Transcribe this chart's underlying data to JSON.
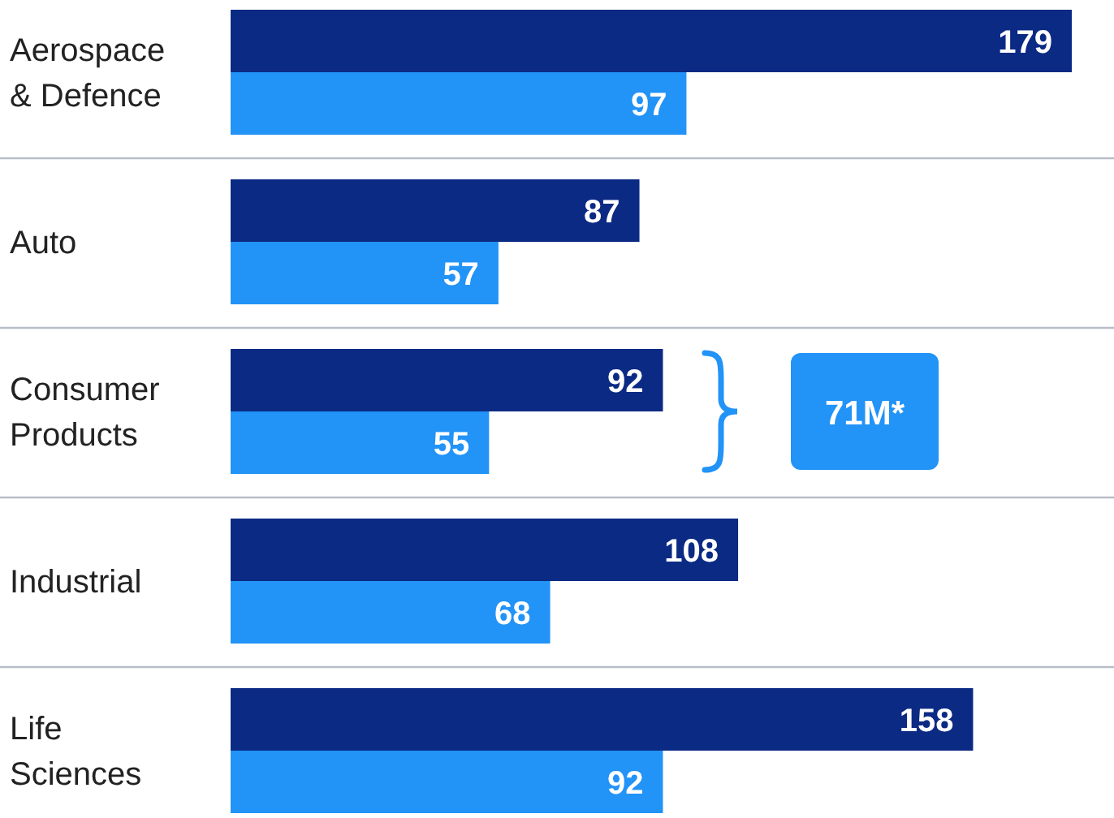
{
  "chart_data": {
    "type": "bar",
    "orientation": "horizontal",
    "categories": [
      "Aerospace & Defence",
      "Auto",
      "Consumer Products",
      "Industrial",
      "Life Sciences"
    ],
    "series": [
      {
        "color": "#0b2a84",
        "values": [
          179,
          87,
          92,
          108,
          158
        ]
      },
      {
        "color": "#2293f7",
        "values": [
          97,
          57,
          55,
          68,
          92
        ]
      }
    ],
    "data_labels": true,
    "annotations": [
      "71M*"
    ]
  }
}
